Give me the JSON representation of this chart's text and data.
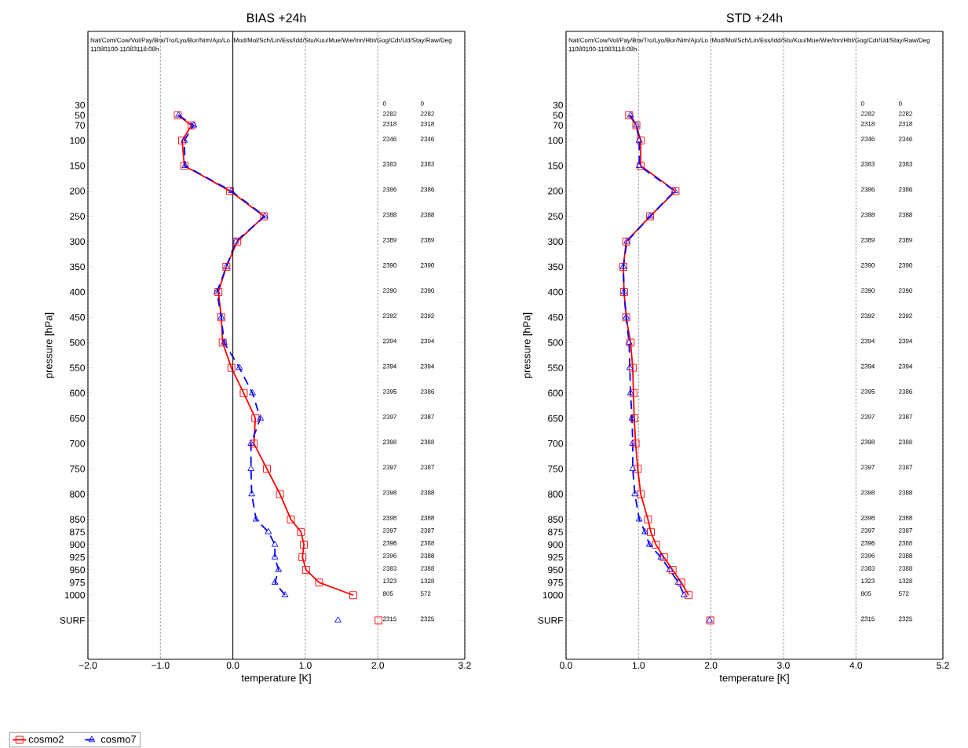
{
  "chart_data": [
    {
      "type": "line",
      "title": "BIAS    +24h",
      "xlabel": "temperature  [K]",
      "ylabel": "pressure [hPa]",
      "xlim": [
        -2.0,
        3.2
      ],
      "xticks": [
        {
          "value": -2.0,
          "label": "−2.0"
        },
        {
          "value": -1.0,
          "label": "−1.0"
        },
        {
          "value": 0.0,
          "label": "0.0"
        },
        {
          "value": 1.0,
          "label": "1.0"
        },
        {
          "value": 2.0,
          "label": "2.0"
        },
        {
          "value": 3.2,
          "label": "3.2"
        }
      ],
      "ylim": [
        1127,
        -116
      ],
      "yticks": [
        30,
        50,
        70,
        100,
        150,
        200,
        250,
        300,
        350,
        400,
        450,
        500,
        550,
        600,
        650,
        700,
        750,
        800,
        850,
        875,
        900,
        925,
        950,
        975,
        1000,
        {
          "value": 1050,
          "label": "SURF"
        }
      ],
      "grid": "x",
      "legend": "bottom left",
      "ref_lines": [
        {
          "axis": "x",
          "value": 0,
          "line_style": "solid"
        }
      ],
      "series": [
        {
          "name": "cosmo2",
          "color": "#ff0000",
          "marker": "square",
          "line_style": "solid",
          "x": [
            -0.76,
            -0.57,
            -0.7,
            -0.67,
            -0.04,
            0.43,
            0.06,
            -0.09,
            -0.2,
            -0.16,
            -0.14,
            -0.02,
            0.15,
            0.31,
            0.29,
            0.47,
            0.65,
            0.8,
            0.94,
            0.98,
            0.96,
            1.01,
            1.19,
            1.66
          ],
          "values": [
            50,
            70,
            100,
            150,
            200,
            250,
            300,
            350,
            400,
            450,
            500,
            550,
            600,
            650,
            700,
            750,
            800,
            850,
            875,
            900,
            925,
            950,
            975,
            1000
          ]
        },
        {
          "name": "cosmo7",
          "color": "#0000ff",
          "marker": "triangle",
          "line_style": "dashed",
          "x": [
            -0.75,
            -0.54,
            -0.67,
            -0.66,
            -0.02,
            0.44,
            0.04,
            -0.09,
            -0.22,
            -0.16,
            -0.12,
            0.09,
            0.27,
            0.38,
            0.25,
            0.25,
            0.26,
            0.32,
            0.49,
            0.58,
            0.58,
            0.63,
            0.58,
            0.72
          ],
          "values": [
            50,
            70,
            100,
            150,
            200,
            250,
            300,
            350,
            400,
            450,
            500,
            550,
            600,
            650,
            700,
            750,
            800,
            850,
            875,
            900,
            925,
            950,
            975,
            1000
          ]
        },
        {
          "type": "scatter",
          "color": "#ff0000",
          "marker": "square",
          "x": [
            2.01
          ],
          "values": [
            1050
          ]
        },
        {
          "type": "scatter",
          "color": "#0000ff",
          "marker": "triangle",
          "x": [
            1.45
          ],
          "values": [
            1050
          ]
        }
      ],
      "annotations": [
        "Nat/Com/Cow/Vol/Pay/Bra/Tro/Lyo/Bor/Nim/Ajo/Lo /Mod/Mol/Sch/Lin/Ess/Idd/Stu/Kuu/Mue/Wie/Inn/Hbt/Gog/Cdr/Ud/Stay/Raw/Deg",
        "11080100-11083118:08h",
        "0",
        "0",
        "2282",
        "2282",
        "2318",
        "2318",
        "2346",
        "2346",
        "2383",
        "2383",
        "2386",
        "2386",
        "2388",
        "2388",
        "2389",
        "2389",
        "2390",
        "2390",
        "2390",
        "2390",
        "2392",
        "2392",
        "2394",
        "2394",
        "2394",
        "2394",
        "2395",
        "2386",
        "2397",
        "2387",
        "2398",
        "2388",
        "2397",
        "2387",
        "2398",
        "2388",
        "2398",
        "2388",
        "2397",
        "2387",
        "2396",
        "2388",
        "2396",
        "2388",
        "2383",
        "2388",
        "1323",
        "1328",
        "805",
        "572",
        "2315",
        "2325"
      ]
    },
    {
      "type": "line",
      "title": "STD    +24h",
      "xlabel": "temperature  [K]",
      "ylabel": "pressure [hPa]",
      "xlim": [
        0.0,
        5.2
      ],
      "xticks": [
        {
          "value": 0.0,
          "label": "0.0"
        },
        {
          "value": 1.0,
          "label": "1.0"
        },
        {
          "value": 2.0,
          "label": "2.0"
        },
        {
          "value": 3.0,
          "label": "3.0"
        },
        {
          "value": 4.0,
          "label": "4.0"
        },
        {
          "value": 5.2,
          "label": "5.2"
        }
      ],
      "ylim": [
        1127,
        -116
      ],
      "yticks": [
        30,
        50,
        70,
        100,
        150,
        200,
        250,
        300,
        350,
        400,
        450,
        500,
        550,
        600,
        650,
        700,
        750,
        800,
        850,
        875,
        900,
        925,
        950,
        975,
        1000,
        {
          "value": 1050,
          "label": "SURF"
        }
      ],
      "grid": "x",
      "series": [
        {
          "color": "#ff0000",
          "marker": "square",
          "line_style": "solid",
          "x": [
            0.87,
            0.97,
            1.03,
            1.03,
            1.51,
            1.16,
            0.83,
            0.79,
            0.8,
            0.83,
            0.89,
            0.92,
            0.93,
            0.94,
            0.96,
            0.99,
            1.03,
            1.13,
            1.17,
            1.24,
            1.35,
            1.47,
            1.59,
            1.69
          ],
          "values": [
            50,
            70,
            100,
            150,
            200,
            250,
            300,
            350,
            400,
            450,
            500,
            550,
            600,
            650,
            700,
            750,
            800,
            850,
            875,
            900,
            925,
            950,
            975,
            1000
          ]
        },
        {
          "color": "#0000ff",
          "marker": "triangle",
          "line_style": "dashed",
          "x": [
            0.89,
            0.97,
            1.01,
            1.01,
            1.5,
            1.16,
            0.84,
            0.79,
            0.8,
            0.83,
            0.87,
            0.88,
            0.89,
            0.91,
            0.92,
            0.92,
            0.95,
            1.01,
            1.09,
            1.15,
            1.31,
            1.43,
            1.55,
            1.63
          ],
          "values": [
            50,
            70,
            100,
            150,
            200,
            250,
            300,
            350,
            400,
            450,
            500,
            550,
            600,
            650,
            700,
            750,
            800,
            850,
            875,
            900,
            925,
            950,
            975,
            1000
          ]
        },
        {
          "type": "scatter",
          "color": "#ff0000",
          "marker": "square",
          "x": [
            1.99
          ],
          "values": [
            1050
          ]
        },
        {
          "type": "scatter",
          "color": "#0000ff",
          "marker": "triangle",
          "x": [
            1.98
          ],
          "values": [
            1050
          ]
        }
      ],
      "annotations": [
        "Nat/Com/Cow/Vol/Pay/Bra/Tro/Lyo/Bor/Nim/Ajo/Lo /Mod/Mol/Sch/Lin/Ess/Idd/Stu/Kuu/Mue/Wie/Inn/Hbt/Gog/Cdr/Ud/Stay/Raw/Deg",
        "11080100-11083118:08h",
        "0",
        "0",
        "2282",
        "2282",
        "2318",
        "2318",
        "2346",
        "2346",
        "2383",
        "2383",
        "2386",
        "2386",
        "2388",
        "2388",
        "2389",
        "2389",
        "2390",
        "2390",
        "2390",
        "2390",
        "2392",
        "2392",
        "2394",
        "2394",
        "2394",
        "2394",
        "2395",
        "2386",
        "2397",
        "2387",
        "2398",
        "2388",
        "2397",
        "2387",
        "2398",
        "2388",
        "2398",
        "2388",
        "2397",
        "2387",
        "2396",
        "2388",
        "2396",
        "2388",
        "2383",
        "2388",
        "1323",
        "1328",
        "805",
        "572",
        "2315",
        "2325"
      ]
    }
  ]
}
